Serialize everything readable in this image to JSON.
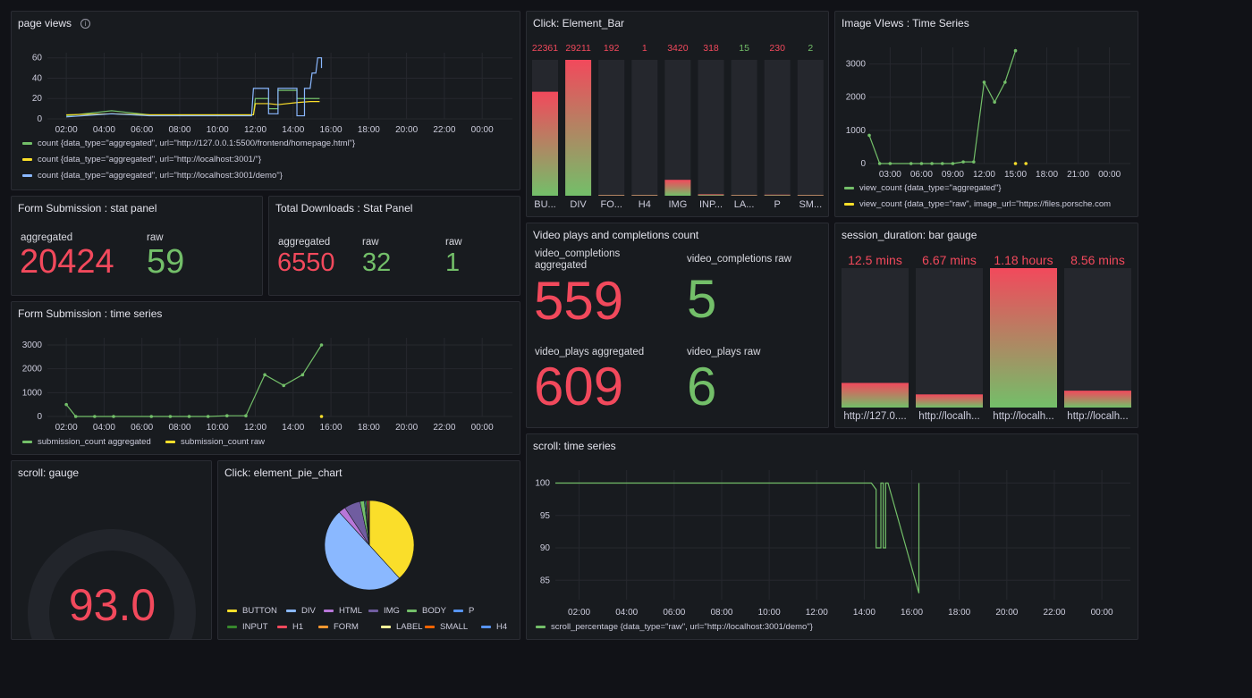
{
  "colors": {
    "red": "#f2495c",
    "green": "#73bf69",
    "yellow": "#fade2a",
    "blue": "#8ab8ff",
    "panel": "#181b1f",
    "grid": "#26282e"
  },
  "page_views": {
    "title": "page views",
    "info_icon": "i",
    "chart_data": {
      "type": "line",
      "y_ticks": [
        0,
        20,
        40,
        60
      ],
      "x_ticks": [
        "02:00",
        "04:00",
        "06:00",
        "08:00",
        "10:00",
        "12:00",
        "14:00",
        "16:00",
        "18:00",
        "20:00",
        "22:00",
        "00:00"
      ],
      "ylim": [
        0,
        65
      ],
      "series": [
        {
          "name": "count {data_type=\"aggregated\", url=\"http://127.0.0.1:5500/frontend/homepage.html\"}",
          "color": "#73bf69",
          "points": [
            [
              1.6,
              3
            ],
            [
              4,
              8
            ],
            [
              6,
              4
            ],
            [
              9,
              4
            ],
            [
              10.5,
              4
            ],
            [
              11.5,
              4
            ],
            [
              11.6,
              20
            ],
            [
              12.3,
              20
            ],
            [
              12.3,
              10
            ],
            [
              12.8,
              10
            ],
            [
              12.8,
              28
            ],
            [
              13.8,
              28
            ],
            [
              13.8,
              20
            ],
            [
              15,
              20
            ]
          ]
        },
        {
          "name": "count {data_type=\"aggregated\", url=\"http://localhost:3001/\"}",
          "color": "#fade2a",
          "points": [
            [
              1.6,
              4
            ],
            [
              4,
              5
            ],
            [
              6,
              4
            ],
            [
              9,
              4
            ],
            [
              10.5,
              4
            ],
            [
              11.5,
              4
            ],
            [
              11.6,
              15
            ],
            [
              12.3,
              15
            ],
            [
              12.8,
              14
            ],
            [
              13.8,
              16
            ],
            [
              14.5,
              17
            ],
            [
              15,
              17
            ]
          ]
        },
        {
          "name": "count {data_type=\"aggregated\", url=\"http://localhost:3001/demo\"}",
          "color": "#8ab8ff",
          "points": [
            [
              1.6,
              2
            ],
            [
              4,
              5
            ],
            [
              6,
              3
            ],
            [
              9,
              3
            ],
            [
              10.5,
              3
            ],
            [
              11.4,
              3
            ],
            [
              11.5,
              30
            ],
            [
              12.3,
              30
            ],
            [
              12.3,
              5
            ],
            [
              12.8,
              5
            ],
            [
              12.8,
              30
            ],
            [
              13.8,
              30
            ],
            [
              13.8,
              3
            ],
            [
              14.2,
              3
            ],
            [
              14.2,
              30
            ],
            [
              14.5,
              30
            ],
            [
              14.6,
              45
            ],
            [
              14.8,
              45
            ],
            [
              14.9,
              60
            ],
            [
              15.1,
              60
            ],
            [
              15.1,
              50
            ]
          ]
        }
      ]
    }
  },
  "click_bar": {
    "title": "Click: Element_Bar",
    "chart_data": {
      "type": "bar",
      "categories": [
        "BU...",
        "DIV",
        "FO...",
        "H4",
        "IMG",
        "INP...",
        "LA...",
        "P",
        "SM..."
      ],
      "values": [
        22361,
        29211,
        192,
        1,
        3420,
        318,
        15,
        230,
        2
      ],
      "value_labels": [
        "22361",
        "29211",
        "192",
        "1",
        "3420",
        "318",
        "15",
        "230",
        "2"
      ],
      "value_colors": [
        "#f2495c",
        "#f2495c",
        "#f2495c",
        "#f2495c",
        "#f2495c",
        "#f2495c",
        "#73bf69",
        "#f2495c",
        "#73bf69"
      ],
      "max": 29211
    }
  },
  "image_views": {
    "title": "Image VIews : Time Series",
    "chart_data": {
      "type": "line",
      "y_ticks": [
        0,
        1000,
        2000,
        3000
      ],
      "x_ticks": [
        "03:00",
        "06:00",
        "09:00",
        "12:00",
        "15:00",
        "18:00",
        "21:00",
        "00:00"
      ],
      "ylim": [
        0,
        3500
      ],
      "series": [
        {
          "name": "view_count {data_type=\"aggregated\"}",
          "color": "#73bf69",
          "points": [
            [
              1,
              850
            ],
            [
              2,
              0
            ],
            [
              3,
              0
            ],
            [
              5,
              0
            ],
            [
              6,
              0
            ],
            [
              7,
              0
            ],
            [
              8,
              0
            ],
            [
              9,
              0
            ],
            [
              10,
              50
            ],
            [
              11,
              50
            ],
            [
              12,
              2450
            ],
            [
              13,
              1850
            ],
            [
              14,
              2450
            ],
            [
              15,
              3400
            ]
          ]
        },
        {
          "name": "view_count {data_type=\"raw\", image_url=\"https://files.porsche.com",
          "color": "#fade2a",
          "points": [
            [
              15,
              0
            ],
            [
              16,
              0
            ]
          ]
        }
      ]
    }
  },
  "form_stat": {
    "title": "Form Submission : stat panel",
    "items": [
      {
        "label": "aggregated",
        "value": "20424",
        "color": "red"
      },
      {
        "label": "raw",
        "value": "59",
        "color": "green"
      }
    ]
  },
  "downloads": {
    "title": "Total Downloads : Stat Panel",
    "items": [
      {
        "label": "aggregated",
        "value": "6550",
        "color": "red"
      },
      {
        "label": "raw",
        "value": "32",
        "color": "green"
      },
      {
        "label": "raw",
        "value": "1",
        "color": "green"
      }
    ]
  },
  "video": {
    "title": "Video plays and completions count",
    "items": [
      {
        "label": "video_completions\naggregated",
        "value": "559",
        "color": "red"
      },
      {
        "label": "video_completions raw",
        "value": "5",
        "color": "green"
      },
      {
        "label": "video_plays aggregated",
        "value": "609",
        "color": "red"
      },
      {
        "label": "video_plays raw",
        "value": "6",
        "color": "green"
      }
    ]
  },
  "session": {
    "title": "session_duration: bar gauge",
    "chart_data": {
      "type": "bar",
      "categories": [
        "http://127.0....",
        "http://localh...",
        "http://localh...",
        "http://localh..."
      ],
      "value_labels": [
        "12.5 mins",
        "6.67 mins",
        "1.18 hours",
        "8.56 mins"
      ],
      "values": [
        12.5,
        6.67,
        70.8,
        8.56
      ],
      "max": 70.8
    }
  },
  "form_ts": {
    "title": "Form Submission : time series",
    "chart_data": {
      "type": "line",
      "y_ticks": [
        0,
        1000,
        2000,
        3000
      ],
      "x_ticks": [
        "02:00",
        "04:00",
        "06:00",
        "08:00",
        "10:00",
        "12:00",
        "14:00",
        "16:00",
        "18:00",
        "20:00",
        "22:00",
        "00:00"
      ],
      "ylim": [
        0,
        3300
      ],
      "series": [
        {
          "name": "submission_count aggregated",
          "color": "#73bf69",
          "points": [
            [
              1.5,
              500
            ],
            [
              2,
              0
            ],
            [
              3,
              0
            ],
            [
              4,
              0
            ],
            [
              6,
              0
            ],
            [
              7,
              0
            ],
            [
              8,
              0
            ],
            [
              9,
              0
            ],
            [
              10,
              30
            ],
            [
              11,
              30
            ],
            [
              12,
              1750
            ],
            [
              13,
              1300
            ],
            [
              14,
              1750
            ],
            [
              15,
              3000
            ]
          ]
        },
        {
          "name": "submission_count raw",
          "color": "#fade2a",
          "points": [
            [
              15,
              0
            ]
          ]
        }
      ]
    }
  },
  "scroll_ts": {
    "title": "scroll: time series",
    "chart_data": {
      "type": "line",
      "y_ticks": [
        85,
        90,
        95,
        100
      ],
      "x_ticks": [
        "02:00",
        "04:00",
        "06:00",
        "08:00",
        "10:00",
        "12:00",
        "14:00",
        "16:00",
        "18:00",
        "20:00",
        "22:00",
        "00:00"
      ],
      "ylim": [
        82,
        102
      ],
      "series": [
        {
          "name": "scroll_percentage {data_type=\"raw\", url=\"http://localhost:3001/demo\"}",
          "color": "#73bf69",
          "points": [
            [
              1,
              100
            ],
            [
              14.3,
              100
            ],
            [
              14.5,
              99
            ],
            [
              14.5,
              90
            ],
            [
              14.7,
              90
            ],
            [
              14.7,
              100
            ],
            [
              14.8,
              100
            ],
            [
              14.8,
              90
            ],
            [
              14.9,
              90
            ],
            [
              14.9,
              100
            ],
            [
              15,
              100
            ],
            [
              16.3,
              83
            ],
            [
              16.3,
              100
            ]
          ]
        }
      ]
    }
  },
  "gauge": {
    "title": "scroll: gauge",
    "value": "93.0",
    "percent": 93
  },
  "pie": {
    "title": "Click: element_pie_chart",
    "chart_data": {
      "type": "pie",
      "slices": [
        {
          "name": "BUTTON",
          "value": 22361,
          "color": "#fade2a"
        },
        {
          "name": "DIV",
          "value": 29211,
          "color": "#8ab8ff"
        },
        {
          "name": "HTML",
          "value": 1500,
          "color": "#b877d9"
        },
        {
          "name": "IMG",
          "value": 3420,
          "color": "#705da0"
        },
        {
          "name": "BODY",
          "value": 900,
          "color": "#73bf69"
        },
        {
          "name": "P",
          "value": 230,
          "color": "#5794f2"
        },
        {
          "name": "INPUT",
          "value": 318,
          "color": "#37872d"
        },
        {
          "name": "H1",
          "value": 300,
          "color": "#f2495c"
        },
        {
          "name": "FORM",
          "value": 192,
          "color": "#ff9830"
        },
        {
          "name": "LABEL",
          "value": 15,
          "color": "#fff899"
        },
        {
          "name": "SMALL",
          "value": 2,
          "color": "#fa6400"
        },
        {
          "name": "H4",
          "value": 1,
          "color": "#5794f2"
        }
      ]
    }
  }
}
